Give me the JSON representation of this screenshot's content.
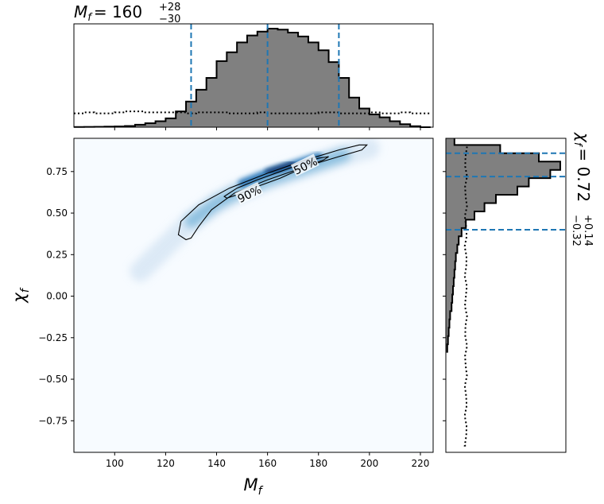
{
  "chart_data": {
    "type": "corner-plot",
    "colors": {
      "hist_fill": "#808080",
      "hist_edge": "#000000",
      "quantile_line": "#1f77b4",
      "density_low": "#f7fbff",
      "density_high": "#08306b"
    },
    "main": {
      "type": "heatmap",
      "xlabel_base": "M",
      "xlabel_sub": "f",
      "ylabel_base": "χ",
      "ylabel_sub": "f",
      "xlim": [
        84,
        225
      ],
      "ylim": [
        -0.94,
        0.95
      ],
      "xticks": [
        100,
        120,
        140,
        160,
        180,
        200,
        220
      ],
      "yticks": [
        -0.75,
        -0.5,
        -0.25,
        0.0,
        0.25,
        0.5,
        0.75
      ],
      "ytick_labels": [
        "−0.75",
        "−0.50",
        "−0.25",
        "0.00",
        "0.25",
        "0.50",
        "0.75"
      ],
      "density_ridge": [
        [
          110,
          0.15
        ],
        [
          120,
          0.3
        ],
        [
          130,
          0.45
        ],
        [
          140,
          0.56
        ],
        [
          150,
          0.64
        ],
        [
          160,
          0.7
        ],
        [
          170,
          0.75
        ],
        [
          180,
          0.8
        ],
        [
          190,
          0.85
        ],
        [
          200,
          0.89
        ]
      ],
      "contours": [
        {
          "label": "90%",
          "points": [
            [
              128,
              0.34
            ],
            [
              125,
              0.37
            ],
            [
              126,
              0.45
            ],
            [
              133,
              0.55
            ],
            [
              145,
              0.65
            ],
            [
              160,
              0.74
            ],
            [
              175,
              0.82
            ],
            [
              188,
              0.88
            ],
            [
              196,
              0.91
            ],
            [
              199,
              0.91
            ],
            [
              197,
              0.88
            ],
            [
              188,
              0.84
            ],
            [
              175,
              0.78
            ],
            [
              160,
              0.7
            ],
            [
              147,
              0.62
            ],
            [
              138,
              0.52
            ],
            [
              133,
              0.42
            ],
            [
              130,
              0.35
            ]
          ]
        },
        {
          "label": "50%",
          "points": [
            [
              143,
              0.6
            ],
            [
              148,
              0.65
            ],
            [
              156,
              0.7
            ],
            [
              165,
              0.75
            ],
            [
              174,
              0.8
            ],
            [
              180,
              0.83
            ],
            [
              184,
              0.84
            ],
            [
              182,
              0.82
            ],
            [
              175,
              0.78
            ],
            [
              165,
              0.71
            ],
            [
              156,
              0.66
            ],
            [
              148,
              0.61
            ],
            [
              144,
              0.59
            ]
          ]
        }
      ],
      "contour_labels": [
        {
          "text": "90%",
          "x": 153,
          "y": 0.61
        },
        {
          "text": "50%",
          "x": 175,
          "y": 0.78
        }
      ]
    },
    "top": {
      "type": "histogram",
      "xlim": [
        84,
        225
      ],
      "annotation_base": "M",
      "annotation_sub": "f",
      "annotation_eq": "= 160",
      "annotation_sup": "+28",
      "annotation_low": "−30",
      "quantiles": [
        130,
        160,
        188
      ],
      "bin_edges": [
        84,
        88,
        92,
        96,
        100,
        104,
        108,
        112,
        116,
        120,
        124,
        128,
        132,
        136,
        140,
        144,
        148,
        152,
        156,
        160,
        164,
        168,
        172,
        176,
        180,
        184,
        188,
        192,
        196,
        200,
        204,
        208,
        212,
        216,
        220,
        224
      ],
      "counts": [
        0.002,
        0.003,
        0.004,
        0.006,
        0.008,
        0.012,
        0.025,
        0.04,
        0.06,
        0.09,
        0.16,
        0.26,
        0.38,
        0.5,
        0.67,
        0.76,
        0.86,
        0.93,
        0.97,
        1.0,
        0.99,
        0.96,
        0.92,
        0.86,
        0.78,
        0.66,
        0.5,
        0.3,
        0.19,
        0.13,
        0.1,
        0.06,
        0.03,
        0.01,
        0.0
      ],
      "prior": [
        0.14,
        0.15,
        0.14,
        0.14,
        0.15,
        0.16,
        0.16,
        0.15,
        0.15,
        0.15,
        0.15,
        0.14,
        0.15,
        0.15,
        0.15,
        0.14,
        0.14,
        0.14,
        0.15,
        0.14,
        0.14,
        0.14,
        0.14,
        0.14,
        0.15,
        0.15,
        0.14,
        0.14,
        0.14,
        0.15,
        0.14,
        0.14,
        0.15,
        0.14,
        0.14
      ]
    },
    "right": {
      "type": "histogram",
      "orientation": "horizontal",
      "ylim": [
        -0.94,
        0.95
      ],
      "annotation_base": "χ",
      "annotation_sub": "f",
      "annotation_eq": "= 0.72",
      "annotation_sup": "+0.14",
      "annotation_low": "−0.32",
      "quantiles": [
        0.4,
        0.72,
        0.86
      ],
      "bin_edges": [
        -0.34,
        -0.29,
        -0.24,
        -0.19,
        -0.14,
        -0.09,
        -0.04,
        0.01,
        0.06,
        0.11,
        0.16,
        0.21,
        0.26,
        0.31,
        0.36,
        0.41,
        0.46,
        0.51,
        0.56,
        0.61,
        0.66,
        0.71,
        0.76,
        0.81,
        0.86,
        0.91,
        0.95
      ],
      "counts": [
        0.01,
        0.015,
        0.02,
        0.025,
        0.03,
        0.04,
        0.045,
        0.05,
        0.055,
        0.06,
        0.065,
        0.07,
        0.08,
        0.09,
        0.11,
        0.14,
        0.2,
        0.27,
        0.35,
        0.5,
        0.58,
        0.73,
        0.8,
        0.65,
        0.38,
        0.06
      ],
      "prior_x": 0.14
    }
  }
}
